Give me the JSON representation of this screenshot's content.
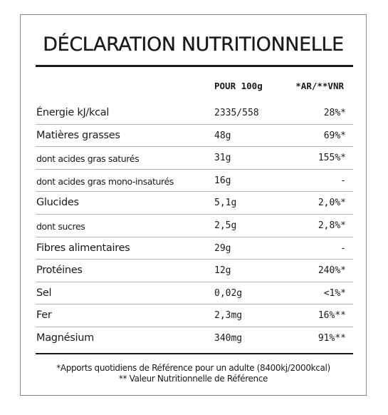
{
  "title": "DÉCLARATION NUTRITIONNELLE",
  "headers": {
    "per100": "POUR 100g",
    "ar": "*AR/**VNR"
  },
  "rows": [
    {
      "name": "Énergie kJ/kcal",
      "value": "2335/558",
      "ar": "28%*",
      "sub": false
    },
    {
      "name": "Matières grasses",
      "value": "48g",
      "ar": "69%*",
      "sub": false
    },
    {
      "name": "dont acides gras saturés",
      "value": "31g",
      "ar": "155%*",
      "sub": true
    },
    {
      "name": "dont acides gras mono-insaturés",
      "value": "16g",
      "ar": "-",
      "sub": true
    },
    {
      "name": "Glucides",
      "value": "5,1g",
      "ar": "2,0%*",
      "sub": false
    },
    {
      "name": "dont sucres",
      "value": "2,5g",
      "ar": "2,8%*",
      "sub": true
    },
    {
      "name": "Fibres alimentaires",
      "value": "29g",
      "ar": "-",
      "sub": false
    },
    {
      "name": "Protéines",
      "value": "12g",
      "ar": "240%*",
      "sub": false
    },
    {
      "name": "Sel",
      "value": "0,02g",
      "ar": "<1%*",
      "sub": false
    },
    {
      "name": "Fer",
      "value": "2,3mg",
      "ar": "16%**",
      "sub": false
    },
    {
      "name": "Magnésium",
      "value": "340mg",
      "ar": "91%**",
      "sub": false
    }
  ],
  "footnotes": {
    "line1": "*Apports quotidiens de Référence pour un adulte (8400kj/2000kcal)",
    "line2": "** Valeur Nutritionnelle de Référence"
  }
}
